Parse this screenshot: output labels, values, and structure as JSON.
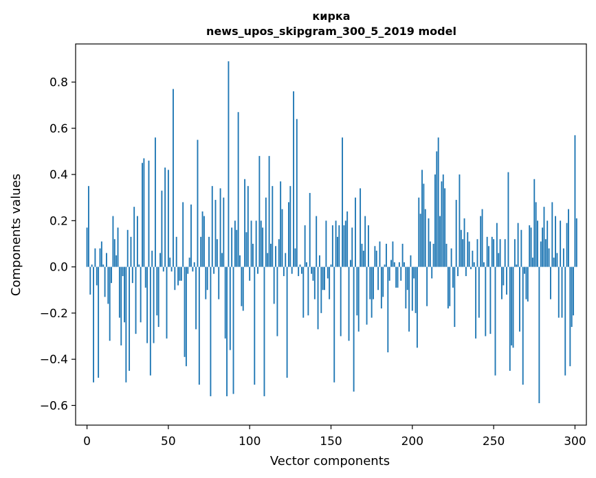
{
  "chart_data": {
    "type": "bar",
    "title": "кирка",
    "subtitle": "news_upos_skipgram_300_5_2019 model",
    "xlabel": "Vector components",
    "ylabel": "Components values",
    "xlim": [
      -7,
      307
    ],
    "ylim": [
      -0.685,
      0.965
    ],
    "grid": false,
    "x_ticks": [
      0,
      50,
      100,
      150,
      200,
      250,
      300
    ],
    "x_tick_labels": [
      "0",
      "50",
      "100",
      "150",
      "200",
      "250",
      "300"
    ],
    "y_ticks": [
      -0.6,
      -0.4,
      -0.2,
      0.0,
      0.2,
      0.4,
      0.6,
      0.8
    ],
    "y_tick_labels": [
      "−0.6",
      "−0.4",
      "−0.2",
      "0.0",
      "0.2",
      "0.4",
      "0.6",
      "0.8"
    ],
    "bar_color": "#1f77b4",
    "values": [
      0.17,
      0.35,
      -0.12,
      0.01,
      -0.5,
      0.08,
      -0.08,
      -0.48,
      0.08,
      0.11,
      0.01,
      -0.13,
      0.06,
      -0.16,
      -0.32,
      -0.07,
      0.22,
      0.12,
      0.05,
      0.17,
      -0.22,
      -0.34,
      -0.04,
      -0.24,
      -0.5,
      0.16,
      -0.45,
      0.13,
      -0.07,
      0.26,
      -0.29,
      0.22,
      0.01,
      -0.24,
      0.45,
      0.47,
      -0.09,
      -0.33,
      0.46,
      -0.47,
      0.07,
      -0.33,
      0.56,
      -0.21,
      -0.26,
      0.06,
      0.33,
      -0.02,
      0.43,
      -0.31,
      0.42,
      0.04,
      -0.02,
      0.77,
      -0.1,
      0.13,
      -0.08,
      -0.06,
      -0.06,
      0.28,
      -0.39,
      -0.43,
      -0.03,
      0.04,
      0.27,
      -0.02,
      0.02,
      -0.27,
      0.55,
      -0.51,
      0.13,
      0.24,
      0.22,
      -0.14,
      -0.1,
      0.13,
      -0.56,
      0.35,
      -0.03,
      0.29,
      0.12,
      -0.14,
      0.34,
      0.06,
      0.3,
      -0.31,
      -0.56,
      0.89,
      -0.36,
      0.17,
      -0.55,
      0.2,
      0.16,
      0.67,
      0.05,
      -0.17,
      -0.19,
      0.38,
      0.15,
      0.35,
      -0.06,
      0.2,
      0.1,
      -0.51,
      0.2,
      -0.03,
      0.48,
      0.2,
      0.17,
      -0.56,
      0.3,
      0.06,
      0.48,
      0.1,
      0.35,
      -0.16,
      0.09,
      -0.3,
      0.12,
      0.37,
      0.25,
      -0.04,
      0.06,
      -0.48,
      0.28,
      0.35,
      -0.03,
      0.76,
      0.08,
      0.64,
      -0.04,
      0.01,
      -0.03,
      -0.22,
      0.18,
      0.02,
      -0.21,
      0.32,
      -0.03,
      -0.06,
      -0.14,
      0.22,
      -0.27,
      0.05,
      -0.2,
      -0.1,
      -0.1,
      0.2,
      -0.05,
      -0.14,
      0.01,
      0.18,
      -0.5,
      0.2,
      0.13,
      0.18,
      -0.3,
      0.56,
      0.18,
      0.2,
      0.24,
      -0.32,
      0.03,
      0.17,
      -0.54,
      0.3,
      -0.21,
      -0.28,
      0.34,
      0.1,
      0.07,
      0.22,
      -0.25,
      0.18,
      -0.14,
      -0.22,
      -0.14,
      0.09,
      0.07,
      -0.1,
      0.11,
      -0.18,
      -0.13,
      0.01,
      0.1,
      -0.37,
      -0.06,
      0.03,
      0.11,
      0.02,
      -0.09,
      -0.09,
      0.02,
      -0.06,
      0.1,
      0.02,
      -0.18,
      -0.1,
      -0.28,
      0.05,
      -0.19,
      -0.05,
      -0.2,
      -0.35,
      0.3,
      0.23,
      0.42,
      0.36,
      0.25,
      -0.17,
      0.21,
      0.11,
      -0.05,
      0.1,
      0.4,
      0.5,
      0.56,
      0.22,
      0.37,
      0.4,
      0.34,
      0.1,
      -0.18,
      -0.17,
      0.08,
      -0.09,
      -0.26,
      0.29,
      -0.04,
      0.4,
      0.16,
      0.12,
      0.21,
      -0.04,
      0.15,
      0.11,
      -0.01,
      0.07,
      0.02,
      -0.31,
      0.12,
      -0.22,
      0.22,
      0.25,
      0.02,
      -0.3,
      0.13,
      0.09,
      -0.29,
      0.13,
      0.12,
      -0.47,
      0.19,
      0.06,
      0.12,
      -0.14,
      -0.08,
      0.12,
      -0.12,
      0.41,
      -0.45,
      -0.34,
      -0.35,
      0.12,
      0.01,
      0.19,
      -0.28,
      0.16,
      -0.51,
      -0.03,
      -0.14,
      -0.15,
      0.18,
      0.17,
      0.04,
      0.38,
      0.28,
      0.2,
      -0.59,
      0.11,
      0.17,
      0.26,
      0.12,
      0.2,
      0.08,
      -0.14,
      0.28,
      0.04,
      0.22,
      0.06,
      -0.22,
      0.2,
      -0.22,
      0.08,
      -0.47,
      0.19,
      0.25,
      -0.43,
      -0.26,
      -0.21,
      0.57,
      0.21
    ]
  }
}
